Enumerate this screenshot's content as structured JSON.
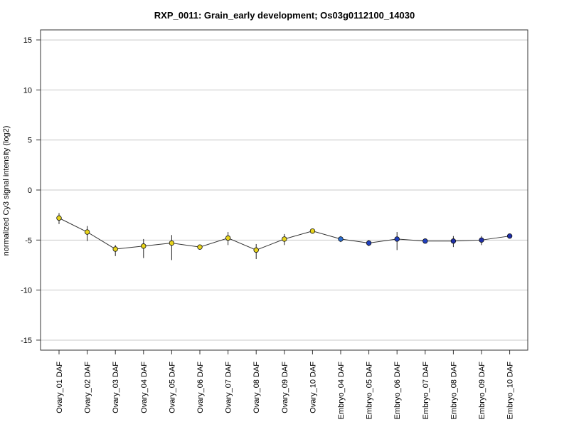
{
  "chart_data": {
    "type": "line",
    "title": "RXP_0011: Grain_early development; Os03g0112100_14030",
    "xlabel": "",
    "ylabel": "normalized Cy3 signal intensity (log2)",
    "ylim": [
      -16,
      16
    ],
    "yticks": [
      -15,
      -10,
      -5,
      0,
      5,
      10,
      15
    ],
    "ytick_labels": [
      "-15",
      "-10",
      "-5",
      "0",
      "5",
      "10",
      "15"
    ],
    "grid": "horizontal",
    "categories": [
      "Ovary_01 DAF",
      "Ovary_02 DAF",
      "Ovary_03 DAF",
      "Ovary_04 DAF",
      "Ovary_05 DAF",
      "Ovary_06 DAF",
      "Ovary_07 DAF",
      "Ovary_08 DAF",
      "Ovary_09 DAF",
      "Ovary_10 DAF",
      "Embryo_04 DAF",
      "Embryo_05 DAF",
      "Embryo_06 DAF",
      "Embryo_07 DAF",
      "Embryo_08 DAF",
      "Embryo_09 DAF",
      "Embryo_10 DAF"
    ],
    "values": [
      -2.8,
      -4.2,
      -5.9,
      -5.6,
      -5.3,
      -5.7,
      -4.8,
      -6.0,
      -4.9,
      -4.1,
      -4.9,
      -5.3,
      -4.9,
      -5.1,
      -5.1,
      -5.0,
      -4.6
    ],
    "error_low": [
      -3.4,
      -5.1,
      -6.6,
      -6.8,
      -7.0,
      -5.8,
      -5.5,
      -6.9,
      -5.5,
      -4.2,
      -5.2,
      -5.6,
      -6.0,
      -5.2,
      -5.7,
      -5.5,
      -4.7
    ],
    "error_high": [
      -2.3,
      -3.6,
      -5.5,
      -4.9,
      -4.5,
      -5.6,
      -4.2,
      -5.4,
      -4.4,
      -4.0,
      -4.6,
      -5.0,
      -4.2,
      -5.0,
      -4.6,
      -4.6,
      -4.4
    ],
    "point_colors": [
      "#e8d41c",
      "#e8d41c",
      "#e8d41c",
      "#e8d41c",
      "#e8d41c",
      "#e8d41c",
      "#e8d41c",
      "#e8d41c",
      "#e8d41c",
      "#e8d41c",
      "#2b6fd4",
      "#1f3fbf",
      "#1f3fbf",
      "#1f3fbf",
      "#1f2fa8",
      "#1f2fa8",
      "#1f2fa8"
    ],
    "line_color": "#333333",
    "grid_color": "#c8c8c8"
  }
}
